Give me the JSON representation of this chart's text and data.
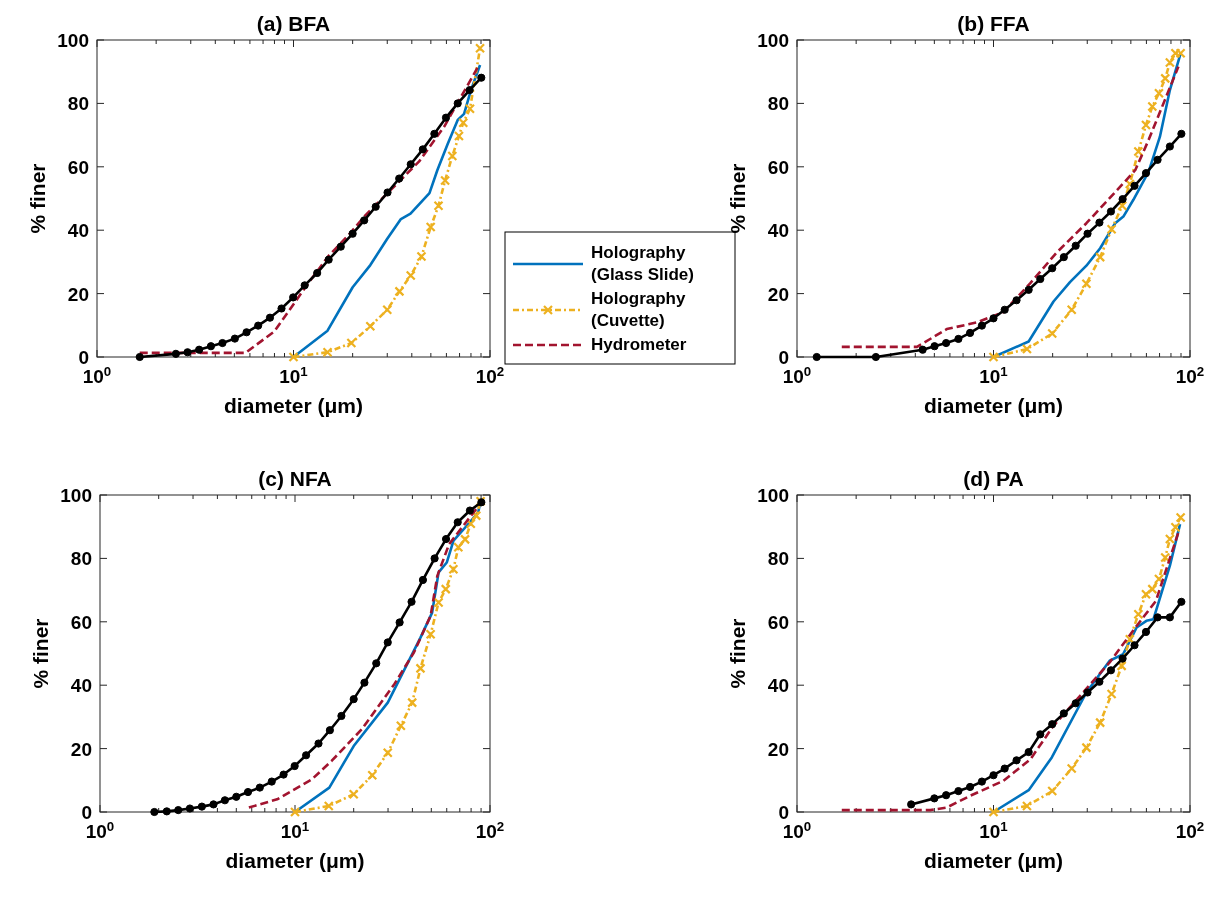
{
  "chart_data": [
    {
      "type": "line",
      "title": "(a) BFA",
      "xlabel": "diameter (μm)",
      "ylabel": "% finer",
      "log": "x",
      "legend": "right",
      "xlim": [
        1,
        100
      ],
      "ylim": [
        0,
        100
      ],
      "xticks": [
        {
          "value": 1,
          "label": "10$^{0}$"
        },
        {
          "value": 2,
          "label": null
        },
        {
          "value": 3,
          "label": null
        },
        {
          "value": 4,
          "label": null
        },
        {
          "value": 5,
          "label": null
        },
        {
          "value": 6,
          "label": null
        },
        {
          "value": 7,
          "label": null
        },
        {
          "value": 8,
          "label": null
        },
        {
          "value": 9,
          "label": null
        },
        {
          "value": 10,
          "label": "10$^{1}$"
        },
        {
          "value": 20,
          "label": null
        },
        {
          "value": 30,
          "label": null
        },
        {
          "value": 40,
          "label": null
        },
        {
          "value": 50,
          "label": null
        },
        {
          "value": 60,
          "label": null
        },
        {
          "value": 70,
          "label": null
        },
        {
          "value": 80,
          "label": null
        },
        {
          "value": 90,
          "label": null
        },
        {
          "value": 100,
          "label": "10$^{2}$"
        }
      ],
      "yticks": [
        0,
        20,
        40,
        60,
        80,
        100
      ],
      "series": [
        {
          "name": "Holography (Glass Slide)",
          "color": "#0072bd",
          "line_style": "solid",
          "marker": "none",
          "x": [
            10,
            14.9,
            20,
            24.6,
            30,
            35.2,
            39.4,
            49.2,
            54,
            60.9,
            68.5,
            73.8,
            80,
            89
          ],
          "values": [
            0,
            8.3,
            22,
            29,
            37.3,
            43.5,
            45.2,
            51.7,
            59,
            67.2,
            74.8,
            76.7,
            84.2,
            92.1
          ]
        },
        {
          "name": "Holography (Cuvette)",
          "color": "#edb120",
          "line_style": "dotted",
          "marker": "cross",
          "x": [
            10,
            14.9,
            19.7,
            24.6,
            30,
            34.6,
            39.5,
            44.8,
            49.9,
            54.7,
            59.1,
            64.3,
            69.5,
            73.1,
            79.1,
            89
          ],
          "values": [
            0,
            1.5,
            4.4,
            9.7,
            14.9,
            20.7,
            25.7,
            31.7,
            41,
            47.7,
            55.7,
            63.4,
            69.7,
            73.9,
            78.3,
            97.4
          ]
        },
        {
          "name": "Hydrometer",
          "color": "#a2142f",
          "line_style": "dashed",
          "marker": "none",
          "x": [
            1.65,
            5.7,
            8,
            11.9,
            15,
            19.4,
            22.9,
            43.6,
            58.5,
            87
          ],
          "values": [
            1.3,
            1.3,
            8.1,
            23.3,
            31.7,
            39,
            44.3,
            61.7,
            72.7,
            91.6
          ]
        },
        {
          "color": "#000000",
          "line_style": "solid",
          "marker": "circle",
          "x": [
            1.65,
            2.52,
            2.89,
            3.31,
            3.8,
            4.35,
            5.03,
            5.77,
            6.61,
            7.59,
            8.69,
            9.96,
            11.4,
            13.2,
            15.1,
            17.4,
            20,
            22.9,
            26.2,
            30.1,
            34.5,
            39.5,
            45.5,
            52.1,
            59.7,
            68.5,
            78.8,
            90.3
          ],
          "values": [
            0,
            1,
            1.5,
            2.3,
            3.4,
            4.4,
            5.8,
            7.8,
            9.9,
            12.4,
            15.3,
            18.8,
            22.6,
            26.5,
            30.7,
            34.8,
            38.9,
            43.1,
            47.4,
            51.9,
            56.3,
            60.8,
            65.5,
            70.4,
            75.5,
            80,
            84.2,
            88.1
          ]
        }
      ]
    },
    {
      "type": "line",
      "title": "(b) FFA",
      "xlabel": "diameter (μm)",
      "ylabel": "% finer",
      "log": "x",
      "xlim": [
        1,
        100
      ],
      "ylim": [
        0,
        100
      ],
      "xticks": [
        {
          "value": 1,
          "label": "10$^{0}$"
        },
        {
          "value": 2,
          "label": null
        },
        {
          "value": 3,
          "label": null
        },
        {
          "value": 4,
          "label": null
        },
        {
          "value": 5,
          "label": null
        },
        {
          "value": 6,
          "label": null
        },
        {
          "value": 7,
          "label": null
        },
        {
          "value": 8,
          "label": null
        },
        {
          "value": 9,
          "label": null
        },
        {
          "value": 10,
          "label": "10$^{1}$"
        },
        {
          "value": 20,
          "label": null
        },
        {
          "value": 30,
          "label": null
        },
        {
          "value": 40,
          "label": null
        },
        {
          "value": 50,
          "label": null
        },
        {
          "value": 60,
          "label": null
        },
        {
          "value": 70,
          "label": null
        },
        {
          "value": 80,
          "label": null
        },
        {
          "value": 90,
          "label": null
        },
        {
          "value": 100,
          "label": "10$^{2}$"
        }
      ],
      "yticks": [
        0,
        20,
        40,
        60,
        80,
        100
      ],
      "series": [
        {
          "color": "#0072bd",
          "line_style": "solid",
          "marker": "none",
          "x": [
            10,
            15.1,
            20.2,
            24.5,
            29.7,
            34.9,
            41.6,
            45.8,
            51.5,
            61.6,
            70.3,
            79,
            89.6
          ],
          "values": [
            0,
            4.9,
            17.5,
            23.6,
            28.8,
            34.3,
            42.2,
            44.3,
            49.6,
            58.5,
            69.5,
            84.2,
            95.8
          ]
        },
        {
          "color": "#edb120",
          "line_style": "dotted",
          "marker": "cross",
          "x": [
            10,
            14.8,
            19.9,
            25,
            29.7,
            34.9,
            39.9,
            45.2,
            49.4,
            54.6,
            59.7,
            64.3,
            69.5,
            74.8,
            79,
            84.3,
            89.6
          ],
          "values": [
            0,
            2.5,
            7.4,
            14.9,
            23.1,
            31.5,
            40.3,
            47.7,
            54.6,
            64.8,
            73.2,
            79,
            83.2,
            87.9,
            92.9,
            95.8,
            95.8
          ]
        },
        {
          "color": "#a2142f",
          "line_style": "dashed",
          "marker": "none",
          "x": [
            1.69,
            4.08,
            5.78,
            8.2,
            11.2,
            15.4,
            21,
            29.7,
            45.8,
            52.7,
            61.6,
            87.3
          ],
          "values": [
            3.2,
            3.2,
            8.8,
            10.9,
            14.1,
            23.3,
            33,
            42.2,
            54.8,
            59,
            68.5,
            91.6
          ]
        },
        {
          "color": "#000000",
          "line_style": "solid",
          "marker": "circle",
          "x": [
            1.26,
            2.52,
            4.36,
            5.01,
            5.74,
            6.63,
            7.6,
            8.73,
            10,
            11.4,
            13.1,
            15.1,
            17.3,
            19.9,
            22.8,
            26.2,
            30.1,
            34.6,
            39.6,
            45.4,
            52.2,
            59.7,
            68.4,
            79,
            90.4
          ],
          "values": [
            0,
            0,
            2.3,
            3.4,
            4.4,
            5.7,
            7.6,
            9.9,
            12.2,
            14.9,
            17.9,
            21.2,
            24.6,
            28,
            31.5,
            35.1,
            38.9,
            42.4,
            45.9,
            49.8,
            54,
            58,
            62.2,
            66.4,
            70.4
          ]
        }
      ]
    },
    {
      "type": "line",
      "title": "(c) NFA",
      "xlabel": "diameter (μm)",
      "ylabel": "% finer",
      "log": "x",
      "xlim": [
        1,
        100
      ],
      "ylim": [
        0,
        100
      ],
      "xticks": [
        {
          "value": 1,
          "label": "10$^{0}$"
        },
        {
          "value": 2,
          "label": null
        },
        {
          "value": 3,
          "label": null
        },
        {
          "value": 4,
          "label": null
        },
        {
          "value": 5,
          "label": null
        },
        {
          "value": 6,
          "label": null
        },
        {
          "value": 7,
          "label": null
        },
        {
          "value": 8,
          "label": null
        },
        {
          "value": 9,
          "label": null
        },
        {
          "value": 10,
          "label": "10$^{1}$"
        },
        {
          "value": 20,
          "label": null
        },
        {
          "value": 30,
          "label": null
        },
        {
          "value": 40,
          "label": null
        },
        {
          "value": 50,
          "label": null
        },
        {
          "value": 60,
          "label": null
        },
        {
          "value": 70,
          "label": null
        },
        {
          "value": 80,
          "label": null
        },
        {
          "value": 90,
          "label": null
        },
        {
          "value": 100,
          "label": "10$^{2}$"
        }
      ],
      "yticks": [
        0,
        20,
        40,
        60,
        80,
        100
      ],
      "series": [
        {
          "color": "#0072bd",
          "line_style": "solid",
          "marker": "none",
          "x": [
            10,
            15,
            20,
            29.9,
            44,
            50.5,
            54.5,
            60,
            65,
            76,
            87,
            89.5
          ],
          "values": [
            0,
            7.7,
            20.8,
            34.5,
            55,
            62.9,
            75.6,
            78.7,
            85.6,
            90.3,
            94.5,
            98.2
          ]
        },
        {
          "color": "#edb120",
          "line_style": "dotted",
          "marker": "cross",
          "x": [
            10,
            14.9,
            20,
            24.9,
            29.9,
            34.9,
            39.9,
            44,
            49.6,
            54.5,
            59.3,
            64.9,
            68.8,
            74.5,
            79.7,
            85,
            89.5
          ],
          "values": [
            0,
            1.9,
            5.6,
            11.6,
            18.7,
            27.2,
            34.5,
            45.3,
            56.1,
            66.1,
            70.3,
            76.6,
            83.5,
            86,
            90.9,
            93.5,
            98
          ]
        },
        {
          "color": "#a2142f",
          "line_style": "dashed",
          "marker": "none",
          "x": [
            5.8,
            8.1,
            12.2,
            15.4,
            22,
            32.3,
            40.7,
            49.6,
            53.7,
            61.7,
            85
          ],
          "values": [
            1.4,
            4,
            10.3,
            16.1,
            26.1,
            40.3,
            50.3,
            61.9,
            74.5,
            84.5,
            95.6
          ]
        },
        {
          "color": "#000000",
          "line_style": "solid",
          "marker": "circle",
          "x": [
            1.9,
            2.2,
            2.52,
            2.89,
            3.33,
            3.82,
            4.37,
            5,
            5.74,
            6.6,
            7.6,
            8.74,
            9.96,
            11.4,
            13.2,
            15.1,
            17.3,
            20,
            22.7,
            26.1,
            29.9,
            34.4,
            39.6,
            45.3,
            52,
            59.5,
            68.3,
            78.9,
            90.3
          ],
          "values": [
            0,
            0.2,
            0.6,
            1.1,
            1.7,
            2.4,
            3.7,
            4.8,
            6.3,
            7.7,
            9.6,
            11.8,
            14.5,
            17.9,
            21.6,
            25.8,
            30.3,
            35.6,
            40.8,
            46.9,
            53.5,
            59.8,
            66.3,
            73.2,
            80,
            86.1,
            91.4,
            95.1,
            97.7
          ]
        }
      ]
    },
    {
      "type": "line",
      "title": "(d) PA",
      "xlabel": "diameter (μm)",
      "ylabel": "% finer",
      "log": "x",
      "xlim": [
        1,
        100
      ],
      "ylim": [
        0,
        100
      ],
      "xticks": [
        {
          "value": 1,
          "label": "10$^{0}$"
        },
        {
          "value": 2,
          "label": null
        },
        {
          "value": 3,
          "label": null
        },
        {
          "value": 4,
          "label": null
        },
        {
          "value": 5,
          "label": null
        },
        {
          "value": 6,
          "label": null
        },
        {
          "value": 7,
          "label": null
        },
        {
          "value": 8,
          "label": null
        },
        {
          "value": 9,
          "label": null
        },
        {
          "value": 10,
          "label": "10$^{1}$"
        },
        {
          "value": 20,
          "label": null
        },
        {
          "value": 30,
          "label": null
        },
        {
          "value": 40,
          "label": null
        },
        {
          "value": 50,
          "label": null
        },
        {
          "value": 60,
          "label": null
        },
        {
          "value": 70,
          "label": null
        },
        {
          "value": 80,
          "label": null
        },
        {
          "value": 90,
          "label": null
        },
        {
          "value": 100,
          "label": "10$^{2}$"
        }
      ],
      "yticks": [
        0,
        20,
        40,
        60,
        80,
        100
      ],
      "series": [
        {
          "color": "#0072bd",
          "line_style": "solid",
          "marker": "none",
          "x": [
            10,
            15.1,
            19.8,
            29.7,
            39,
            45.7,
            53.5,
            60,
            65.1,
            79,
            89
          ],
          "values": [
            0,
            6.9,
            17.2,
            37.7,
            47.7,
            49.8,
            58.2,
            60.3,
            60.8,
            77.7,
            90.8
          ]
        },
        {
          "color": "#edb120",
          "line_style": "dotted",
          "marker": "cross",
          "x": [
            10,
            14.8,
            19.9,
            25,
            29.7,
            34.9,
            39.9,
            44.9,
            49.4,
            54.6,
            59.7,
            64.3,
            69.5,
            74.8,
            79,
            84.3,
            89.6
          ],
          "values": [
            0,
            1.9,
            6.6,
            13.7,
            20.3,
            28.2,
            37.2,
            46.1,
            54.5,
            62.4,
            68.7,
            70.3,
            73.5,
            80.3,
            86.1,
            89.8,
            92.9
          ]
        },
        {
          "color": "#a2142f",
          "line_style": "dashed",
          "marker": "none",
          "x": [
            1.69,
            4.77,
            5.78,
            7.6,
            11.2,
            15.4,
            20.2,
            28.6,
            39,
            53.5,
            67.1,
            87.3
          ],
          "values": [
            0.6,
            0.6,
            1.4,
            5.1,
            9.8,
            16.6,
            27.2,
            37.7,
            47.2,
            58.7,
            66.6,
            88.2
          ]
        },
        {
          "color": "#000000",
          "line_style": "solid",
          "marker": "circle",
          "x": [
            3.81,
            5,
            5.74,
            6.63,
            7.6,
            8.73,
            10,
            11.4,
            13.1,
            15.1,
            17.3,
            19.9,
            22.8,
            26.2,
            30.1,
            34.6,
            39.6,
            45.4,
            52.2,
            59.7,
            68.4,
            79,
            90.4
          ],
          "values": [
            2.4,
            4.3,
            5.3,
            6.6,
            7.9,
            9.6,
            11.6,
            13.7,
            16.3,
            18.9,
            24.5,
            27.7,
            31.1,
            34.3,
            37.7,
            41.1,
            44.7,
            48.4,
            52.6,
            56.8,
            61.4,
            61.4,
            66.3
          ]
        }
      ]
    }
  ]
}
